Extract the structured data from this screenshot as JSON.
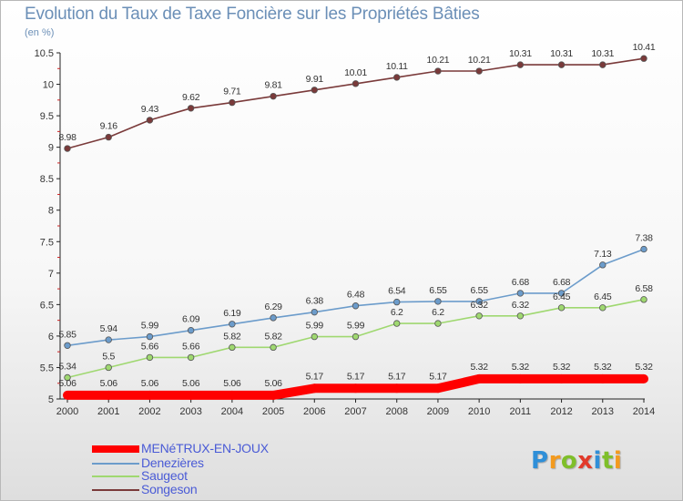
{
  "title": "Evolution du Taux de Taxe Foncière sur les Propriétés Bâties",
  "unit": "(en %)",
  "logo": {
    "letters": [
      "P",
      "r",
      "o",
      "x",
      "i",
      "t",
      "i"
    ],
    "colors": [
      "#2f8fd8",
      "#f39a1e",
      "#7fbf2a",
      "#e23a2a",
      "#2f8fd8",
      "#7fbf2a",
      "#f39a1e"
    ]
  },
  "chart_data": {
    "type": "line",
    "title": "Evolution du Taux de Taxe Foncière sur les Propriétés Bâties",
    "ylabel": "(en %)",
    "xlabel": "",
    "ylim": [
      5,
      10.5
    ],
    "yticks": [
      "5",
      "5.5",
      "6",
      "6.5",
      "7",
      "7.5",
      "8",
      "8.5",
      "9",
      "9.5",
      "10",
      "10.5"
    ],
    "x": [
      "2000",
      "2001",
      "2002",
      "2003",
      "2004",
      "2005",
      "2006",
      "2007",
      "2008",
      "2009",
      "2010",
      "2011",
      "2012",
      "2013",
      "2014"
    ],
    "grid": false,
    "legend_position": "bottom",
    "series": [
      {
        "name": "MENéTRUX-EN-JOUX",
        "color": "#ff0000",
        "values": [
          5.06,
          5.06,
          5.06,
          5.06,
          5.06,
          5.06,
          5.17,
          5.17,
          5.17,
          5.17,
          5.32,
          5.32,
          5.32,
          5.32,
          5.32
        ],
        "labels": [
          "5.06",
          "5.06",
          "5.06",
          "5.06",
          "5.06",
          "5.06",
          "5.17",
          "5.17",
          "5.17",
          "5.17",
          "5.32",
          "5.32",
          "5.32",
          "5.32",
          "5.32"
        ],
        "thick": true
      },
      {
        "name": "Denezières",
        "color": "#6c9ccb",
        "values": [
          5.85,
          5.94,
          5.99,
          6.09,
          6.19,
          6.29,
          6.38,
          6.48,
          6.54,
          6.55,
          6.55,
          6.68,
          6.68,
          7.13,
          7.38
        ],
        "labels": [
          "5.85",
          "5.94",
          "5.99",
          "6.09",
          "6.19",
          "6.29",
          "6.38",
          "6.48",
          "6.54",
          "6.55",
          "6.55",
          "6.68",
          "6.68",
          "7.13",
          "7.38"
        ],
        "thick": false
      },
      {
        "name": "Saugeot",
        "color": "#9fd870",
        "values": [
          5.34,
          5.5,
          5.66,
          5.66,
          5.82,
          5.82,
          5.99,
          5.99,
          6.2,
          6.2,
          6.32,
          6.32,
          6.45,
          6.45,
          6.58
        ],
        "labels": [
          "5.34",
          "5.5",
          "5.66",
          "5.66",
          "5.82",
          "5.82",
          "5.99",
          "5.99",
          "6.2",
          "6.2",
          "6.32",
          "6.32",
          "6.45",
          "6.45",
          "6.58"
        ],
        "thick": false
      },
      {
        "name": "Songeson",
        "color": "#7a3a3a",
        "values": [
          8.98,
          9.16,
          9.43,
          9.62,
          9.71,
          9.81,
          9.91,
          10.01,
          10.11,
          10.21,
          10.21,
          10.31,
          10.31,
          10.31,
          10.41
        ],
        "labels": [
          "8.98",
          "9.16",
          "9.43",
          "9.62",
          "9.71",
          "9.81",
          "9.91",
          "10.01",
          "10.11",
          "10.21",
          "10.21",
          "10.31",
          "10.31",
          "10.31",
          "10.41"
        ],
        "thick": false
      }
    ]
  }
}
